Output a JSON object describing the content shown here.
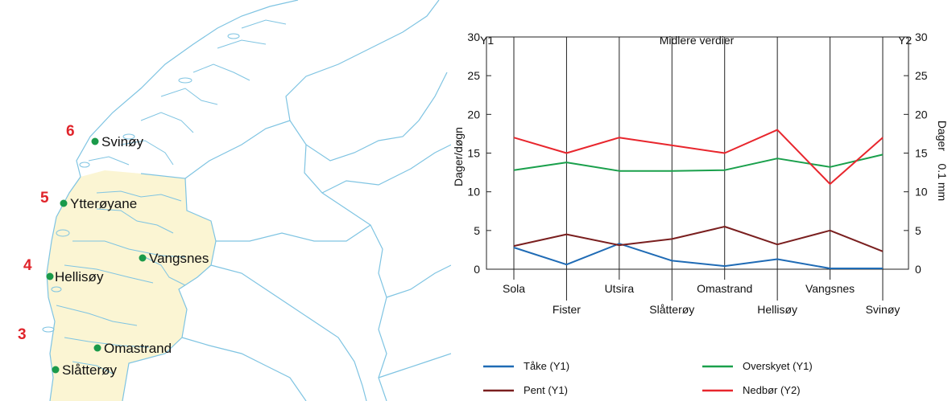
{
  "map": {
    "colors": {
      "land_fill": "#fbf5d3",
      "coast_line": "#7fc4e2",
      "station_dot": "#1a9a4a",
      "region_label": "#e0242b"
    },
    "regions": [
      {
        "label": "6"
      },
      {
        "label": "5"
      },
      {
        "label": "4"
      },
      {
        "label": "3"
      }
    ],
    "stations": [
      {
        "name": "Svinøy"
      },
      {
        "name": "Ytterøyane"
      },
      {
        "name": "Vangsnes"
      },
      {
        "name": "Hellisøy"
      },
      {
        "name": "Omastrand"
      },
      {
        "name": "Slåtterøy"
      }
    ]
  },
  "chart_data": {
    "type": "line",
    "title": "Midlere verdier",
    "y1_label": "Y1",
    "y2_label": "Y2",
    "ylabel": "Dager/døgn",
    "y2label": "Dager    0.1 mm",
    "ylim": [
      0,
      30
    ],
    "y2lim": [
      0,
      30
    ],
    "yticks": [
      0,
      5,
      10,
      15,
      20,
      25,
      30
    ],
    "grid": "vertical lines at categories",
    "categories": [
      "Sola",
      "Fister",
      "Utsira",
      "Slåtterøy",
      "Omastrand",
      "Hellisøy",
      "Vangsnes",
      "Svinøy"
    ],
    "series": [
      {
        "name": "Tåke (Y1)",
        "axis": "y1",
        "color": "#1f6bb5",
        "values": [
          2.8,
          0.6,
          3.3,
          1.1,
          0.4,
          1.3,
          0.1,
          0.1
        ]
      },
      {
        "name": "Pent (Y1)",
        "axis": "y1",
        "color": "#7a1f1f",
        "values": [
          3.0,
          4.5,
          3.1,
          3.9,
          5.5,
          3.2,
          5.0,
          2.3
        ]
      },
      {
        "name": "Overskyet (Y1)",
        "axis": "y1",
        "color": "#1aa04c",
        "values": [
          12.8,
          13.8,
          12.7,
          12.7,
          12.8,
          14.3,
          13.2,
          14.8
        ]
      },
      {
        "name": "Nedbør (Y2)",
        "axis": "y2",
        "color": "#e8262d",
        "values": [
          17.0,
          15.0,
          17.0,
          16.0,
          15.0,
          18.0,
          11.0,
          17.0
        ]
      }
    ],
    "legend_position": "bottom"
  }
}
